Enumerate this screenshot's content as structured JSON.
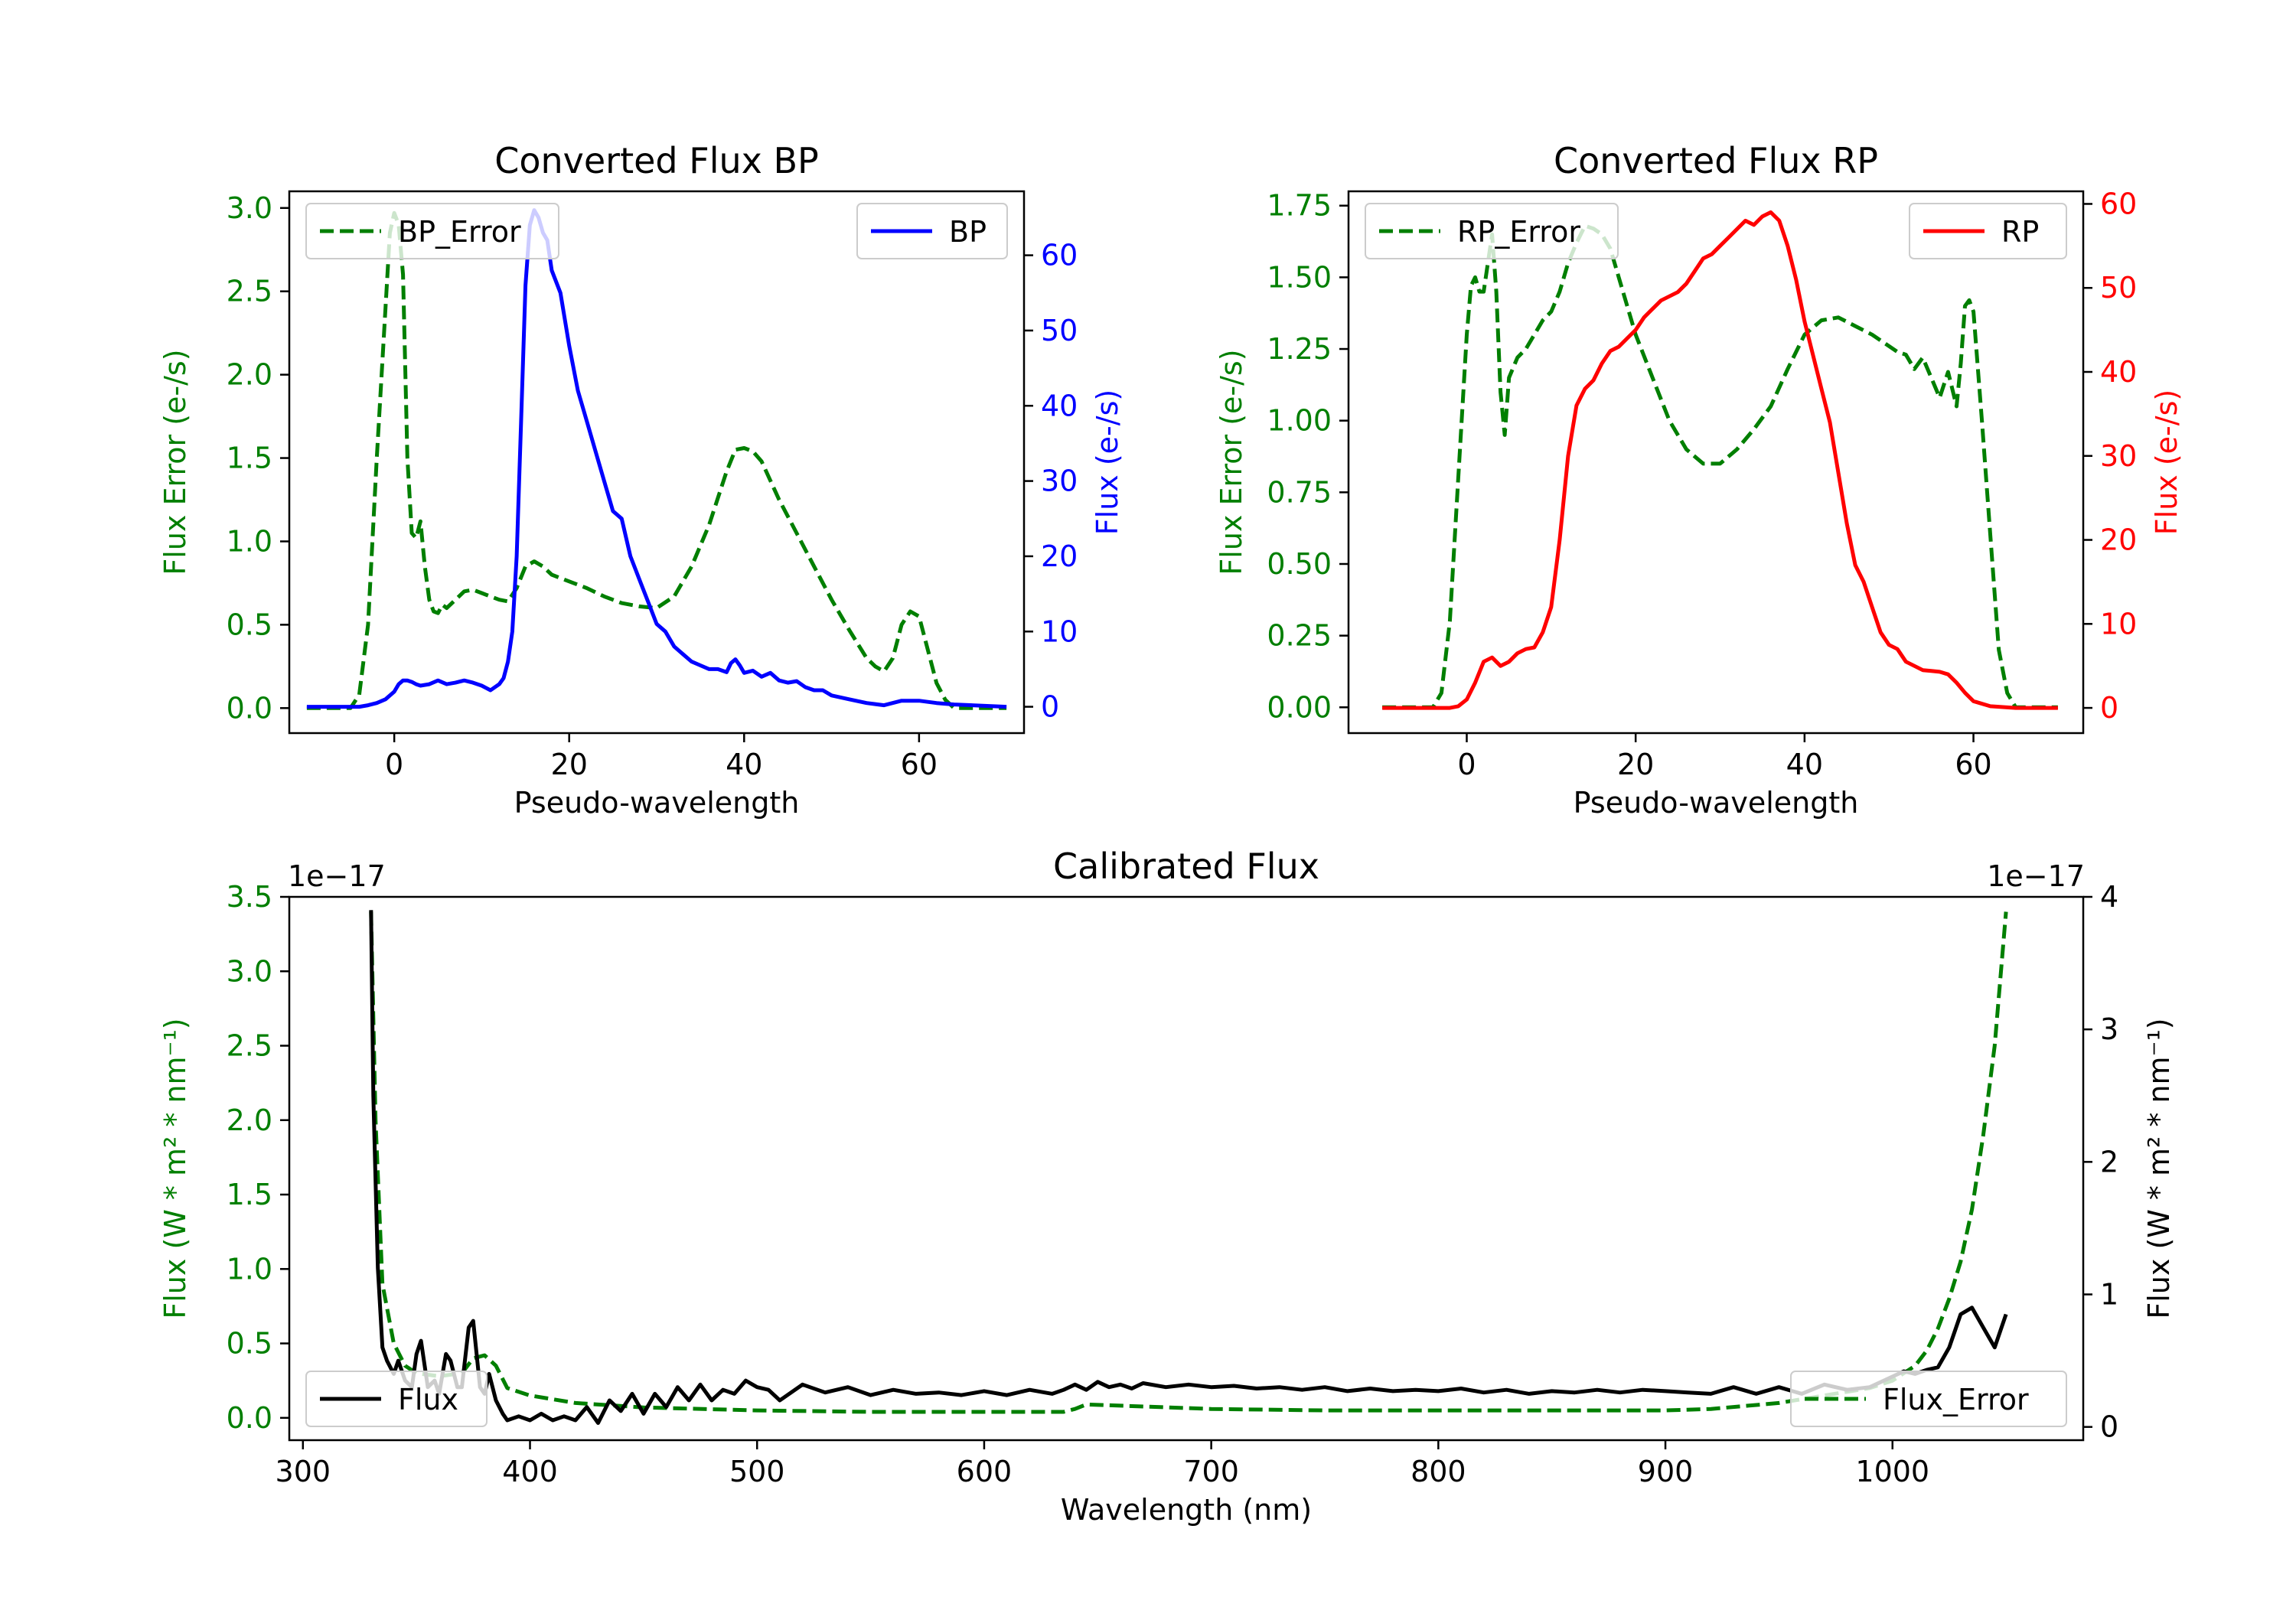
{
  "colors": {
    "error": "#007f00",
    "bp": "#0000ff",
    "rp": "#ff0000",
    "flux": "#000000",
    "axis": "#000000"
  },
  "chart_data": [
    {
      "id": "bp",
      "type": "line",
      "title": "Converted Flux BP",
      "xlabel": "Pseudo-wavelength",
      "ylabel_left": "Flux Error (e-/s)",
      "ylabel_right": "Flux (e-/s)",
      "xlim": [
        -12,
        72
      ],
      "ylim_left": [
        -0.15,
        3.1
      ],
      "ylim_right": [
        -3.5,
        68.5
      ],
      "xticks": [
        0,
        20,
        40,
        60
      ],
      "xtick_labels": [
        "0",
        "20",
        "40",
        "60"
      ],
      "yticks_left": [
        0,
        0.5,
        1,
        1.5,
        2,
        2.5,
        3
      ],
      "ytick_labels_left": [
        "0.0",
        "0.5",
        "1.0",
        "1.5",
        "2.0",
        "2.5",
        "3.0"
      ],
      "yticks_right": [
        0,
        10,
        20,
        30,
        40,
        50,
        60
      ],
      "ytick_labels_right": [
        "0",
        "10",
        "20",
        "30",
        "40",
        "50",
        "60"
      ],
      "legend_left": "BP_Error",
      "legend_right": "BP",
      "series": [
        {
          "name": "BP_Error",
          "axis": "left",
          "style": "dashed",
          "color_key": "error",
          "x": [
            -10,
            -5,
            -4,
            -3,
            -2,
            -1,
            -0.5,
            0,
            0.5,
            1,
            1.5,
            2,
            2.5,
            3,
            3.5,
            4,
            4.5,
            5,
            5.5,
            6,
            7,
            8,
            9,
            10,
            11,
            12,
            13,
            14,
            15,
            16,
            17,
            18,
            19,
            20,
            22,
            24,
            26,
            28,
            30,
            32,
            34,
            36,
            38,
            39,
            40,
            41,
            42,
            44,
            46,
            48,
            50,
            52,
            54,
            55,
            56,
            57,
            58,
            59,
            60,
            61,
            62,
            63,
            64,
            65,
            70
          ],
          "y": [
            0,
            0,
            0.08,
            0.5,
            1.5,
            2.4,
            2.85,
            2.97,
            2.9,
            2.6,
            1.5,
            1.05,
            1.02,
            1.12,
            0.85,
            0.65,
            0.58,
            0.57,
            0.62,
            0.6,
            0.65,
            0.7,
            0.71,
            0.69,
            0.67,
            0.65,
            0.64,
            0.72,
            0.85,
            0.88,
            0.85,
            0.8,
            0.78,
            0.76,
            0.72,
            0.67,
            0.63,
            0.61,
            0.6,
            0.67,
            0.85,
            1.1,
            1.42,
            1.55,
            1.56,
            1.54,
            1.48,
            1.25,
            1.05,
            0.85,
            0.65,
            0.47,
            0.3,
            0.25,
            0.22,
            0.3,
            0.5,
            0.58,
            0.55,
            0.35,
            0.15,
            0.05,
            0,
            0,
            0
          ]
        },
        {
          "name": "BP",
          "axis": "right",
          "style": "solid",
          "color_key": "bp",
          "x": [
            -10,
            -4,
            -3,
            -2,
            -1,
            0,
            0.5,
            1,
            1.5,
            2,
            2.5,
            3,
            4,
            5,
            6,
            7,
            8,
            9,
            10,
            11,
            12,
            12.5,
            13,
            13.5,
            14,
            14.5,
            15,
            15.5,
            16,
            16.5,
            17,
            17.5,
            18,
            19,
            20,
            21,
            22,
            23,
            24,
            25,
            26,
            27,
            28,
            29,
            30,
            31,
            32,
            33,
            34,
            35,
            36,
            37,
            38,
            38.5,
            39,
            39.5,
            40,
            41,
            42,
            43,
            44,
            45,
            46,
            47,
            48,
            49,
            50,
            52,
            54,
            56,
            58,
            60,
            62,
            64,
            70
          ],
          "y": [
            0,
            0,
            0.2,
            0.5,
            1,
            2,
            3,
            3.5,
            3.5,
            3.3,
            3,
            2.8,
            3,
            3.5,
            3,
            3.2,
            3.5,
            3.2,
            2.8,
            2.2,
            3,
            3.8,
            6,
            10,
            20,
            38,
            56,
            64,
            66,
            65,
            63,
            62,
            58,
            55,
            48,
            42,
            38,
            34,
            30,
            26,
            25,
            20,
            17,
            14,
            11,
            10,
            8,
            7,
            6,
            5.5,
            5,
            5,
            4.6,
            5.8,
            6.3,
            5.5,
            4.5,
            4.8,
            4,
            4.5,
            3.5,
            3.2,
            3.4,
            2.6,
            2.2,
            2.2,
            1.5,
            1,
            0.5,
            0.2,
            0.8,
            0.8,
            0.5,
            0.3,
            0
          ]
        }
      ]
    },
    {
      "id": "rp",
      "type": "line",
      "title": "Converted Flux RP",
      "xlabel": "Pseudo-wavelength",
      "ylabel_left": "Flux Error (e-/s)",
      "ylabel_right": "Flux (e-/s)",
      "xlim": [
        -14,
        73
      ],
      "ylim_left": [
        -0.09,
        1.8
      ],
      "ylim_right": [
        -3,
        61.5
      ],
      "xticks": [
        0,
        20,
        40,
        60
      ],
      "xtick_labels": [
        "0",
        "20",
        "40",
        "60"
      ],
      "yticks_left": [
        0,
        0.25,
        0.5,
        0.75,
        1,
        1.25,
        1.5,
        1.75
      ],
      "ytick_labels_left": [
        "0.00",
        "0.25",
        "0.50",
        "0.75",
        "1.00",
        "1.25",
        "1.50",
        "1.75"
      ],
      "yticks_right": [
        0,
        10,
        20,
        30,
        40,
        50,
        60
      ],
      "ytick_labels_right": [
        "0",
        "10",
        "20",
        "30",
        "40",
        "50",
        "60"
      ],
      "legend_left": "RP_Error",
      "legend_right": "RP",
      "series": [
        {
          "name": "RP_Error",
          "axis": "left",
          "style": "dashed",
          "color_key": "error",
          "x": [
            -10,
            -4,
            -3,
            -2,
            -1,
            0,
            0.5,
            1,
            1.5,
            2,
            2.5,
            3,
            3.5,
            4,
            4.5,
            5,
            6,
            7,
            8,
            9,
            10,
            11,
            12,
            13,
            14,
            15,
            16,
            17,
            18,
            19,
            20,
            22,
            24,
            26,
            28,
            30,
            32,
            34,
            36,
            38,
            40,
            42,
            44,
            46,
            48,
            50,
            51,
            52,
            53,
            54,
            55,
            56,
            57,
            58,
            58.5,
            59,
            59.5,
            60,
            61,
            62,
            63,
            64,
            65,
            70
          ],
          "y": [
            0,
            0,
            0.05,
            0.3,
            0.8,
            1.3,
            1.47,
            1.5,
            1.45,
            1.45,
            1.55,
            1.65,
            1.45,
            1.1,
            0.95,
            1.15,
            1.22,
            1.25,
            1.3,
            1.35,
            1.38,
            1.45,
            1.55,
            1.62,
            1.68,
            1.67,
            1.65,
            1.6,
            1.5,
            1.4,
            1.3,
            1.15,
            1.0,
            0.9,
            0.85,
            0.85,
            0.9,
            0.97,
            1.05,
            1.18,
            1.3,
            1.35,
            1.36,
            1.33,
            1.3,
            1.26,
            1.24,
            1.23,
            1.18,
            1.22,
            1.15,
            1.08,
            1.17,
            1.05,
            1.2,
            1.4,
            1.42,
            1.38,
            1.0,
            0.6,
            0.2,
            0.05,
            0,
            0
          ]
        },
        {
          "name": "RP",
          "axis": "right",
          "style": "solid",
          "color_key": "rp",
          "x": [
            -10,
            -2,
            -1,
            0,
            1,
            2,
            3,
            4,
            5,
            6,
            7,
            8,
            9,
            10,
            11,
            12,
            13,
            14,
            15,
            16,
            17,
            18,
            19,
            20,
            21,
            22,
            23,
            24,
            25,
            26,
            27,
            28,
            29,
            30,
            31,
            32,
            33,
            34,
            35,
            36,
            37,
            38,
            39,
            40,
            41,
            42,
            43,
            44,
            45,
            46,
            47,
            48,
            49,
            50,
            51,
            52,
            53,
            54,
            55,
            56,
            57,
            58,
            59,
            60,
            62,
            65,
            70
          ],
          "y": [
            0,
            0,
            0.2,
            1,
            3,
            5.5,
            6,
            5,
            5.5,
            6.5,
            7,
            7.2,
            9,
            12,
            20,
            30,
            36,
            38,
            39,
            41,
            42.5,
            43,
            44,
            45,
            46.5,
            47.5,
            48.5,
            49,
            49.5,
            50.5,
            52,
            53.5,
            54,
            55,
            56,
            57,
            58,
            57.5,
            58.5,
            59,
            58,
            55,
            51,
            46,
            42,
            38,
            34,
            28,
            22,
            17,
            15,
            12,
            9,
            7.5,
            7,
            5.5,
            5,
            4.5,
            4.4,
            4.3,
            4,
            3,
            1.8,
            0.8,
            0.2,
            0,
            0
          ]
        }
      ]
    },
    {
      "id": "cal",
      "type": "line",
      "title": "Calibrated Flux",
      "xlabel": "Wavelength (nm)",
      "ylabel_left": "Flux (W * m² * nm⁻¹)",
      "ylabel_right": "Flux (W * m² * nm⁻¹)",
      "offset_left": "1e−17",
      "offset_right": "1e−17",
      "xlim": [
        294,
        1084
      ],
      "ylim_left": [
        -0.15,
        3.5
      ],
      "ylim_right": [
        -0.1,
        4.0
      ],
      "xticks": [
        300,
        400,
        500,
        600,
        700,
        800,
        900,
        1000
      ],
      "xtick_labels": [
        "300",
        "400",
        "500",
        "600",
        "700",
        "800",
        "900",
        "1000"
      ],
      "yticks_left": [
        0,
        0.5,
        1,
        1.5,
        2,
        2.5,
        3,
        3.5
      ],
      "ytick_labels_left": [
        "0.0",
        "0.5",
        "1.0",
        "1.5",
        "2.0",
        "2.5",
        "3.0",
        "3.5"
      ],
      "yticks_right": [
        0,
        1,
        2,
        3,
        4
      ],
      "ytick_labels_right": [
        "0",
        "1",
        "2",
        "3",
        "4"
      ],
      "legend_left": "Flux",
      "legend_right": "Flux_Error",
      "series": [
        {
          "name": "Flux_Error",
          "axis": "left",
          "style": "dashed",
          "color_key": "error",
          "x": [
            330,
            332,
            335,
            340,
            345,
            350,
            360,
            370,
            375,
            380,
            385,
            390,
            400,
            420,
            450,
            500,
            550,
            600,
            635,
            640,
            645,
            700,
            750,
            800,
            850,
            900,
            920,
            950,
            970,
            990,
            1000,
            1010,
            1015,
            1020,
            1025,
            1030,
            1035,
            1040,
            1045,
            1050
          ],
          "y": [
            3.4,
            2.0,
            0.9,
            0.5,
            0.35,
            0.3,
            0.28,
            0.3,
            0.4,
            0.42,
            0.35,
            0.2,
            0.15,
            0.1,
            0.07,
            0.05,
            0.04,
            0.04,
            0.04,
            0.06,
            0.09,
            0.06,
            0.05,
            0.05,
            0.05,
            0.05,
            0.06,
            0.1,
            0.15,
            0.2,
            0.25,
            0.35,
            0.45,
            0.6,
            0.8,
            1.05,
            1.4,
            1.9,
            2.5,
            3.4
          ]
        },
        {
          "name": "Flux",
          "axis": "right",
          "style": "solid",
          "color_key": "flux",
          "x": [
            330,
            331,
            333,
            335,
            337,
            340,
            342,
            345,
            348,
            350,
            352,
            355,
            358,
            360,
            363,
            365,
            368,
            370,
            373,
            375,
            378,
            380,
            382,
            385,
            388,
            390,
            395,
            400,
            405,
            410,
            415,
            420,
            425,
            430,
            435,
            440,
            445,
            450,
            455,
            460,
            465,
            470,
            475,
            480,
            485,
            490,
            495,
            500,
            505,
            510,
            520,
            530,
            540,
            550,
            560,
            570,
            580,
            590,
            600,
            610,
            620,
            630,
            635,
            640,
            645,
            650,
            655,
            660,
            665,
            670,
            680,
            690,
            700,
            710,
            720,
            730,
            740,
            750,
            760,
            770,
            780,
            790,
            800,
            810,
            820,
            830,
            840,
            850,
            860,
            870,
            880,
            890,
            900,
            910,
            920,
            930,
            940,
            950,
            960,
            970,
            980,
            990,
            1000,
            1005,
            1010,
            1015,
            1020,
            1025,
            1030,
            1035,
            1040,
            1045,
            1050
          ],
          "y": [
            3.9,
            2.5,
            1.2,
            0.6,
            0.5,
            0.4,
            0.5,
            0.35,
            0.3,
            0.55,
            0.65,
            0.3,
            0.35,
            0.25,
            0.55,
            0.5,
            0.3,
            0.3,
            0.75,
            0.8,
            0.3,
            0.25,
            0.4,
            0.2,
            0.1,
            0.05,
            0.08,
            0.05,
            0.1,
            0.05,
            0.08,
            0.05,
            0.15,
            0.03,
            0.2,
            0.12,
            0.25,
            0.1,
            0.25,
            0.15,
            0.3,
            0.2,
            0.32,
            0.2,
            0.28,
            0.25,
            0.35,
            0.3,
            0.28,
            0.2,
            0.32,
            0.26,
            0.3,
            0.24,
            0.28,
            0.25,
            0.26,
            0.24,
            0.27,
            0.24,
            0.28,
            0.25,
            0.28,
            0.32,
            0.28,
            0.34,
            0.3,
            0.32,
            0.29,
            0.33,
            0.3,
            0.32,
            0.3,
            0.31,
            0.29,
            0.3,
            0.28,
            0.3,
            0.27,
            0.29,
            0.27,
            0.28,
            0.27,
            0.29,
            0.26,
            0.28,
            0.25,
            0.27,
            0.26,
            0.28,
            0.26,
            0.28,
            0.27,
            0.26,
            0.25,
            0.3,
            0.25,
            0.3,
            0.25,
            0.32,
            0.28,
            0.3,
            0.38,
            0.42,
            0.4,
            0.43,
            0.45,
            0.6,
            0.85,
            0.9,
            0.75,
            0.6,
            0.85
          ]
        }
      ]
    }
  ]
}
